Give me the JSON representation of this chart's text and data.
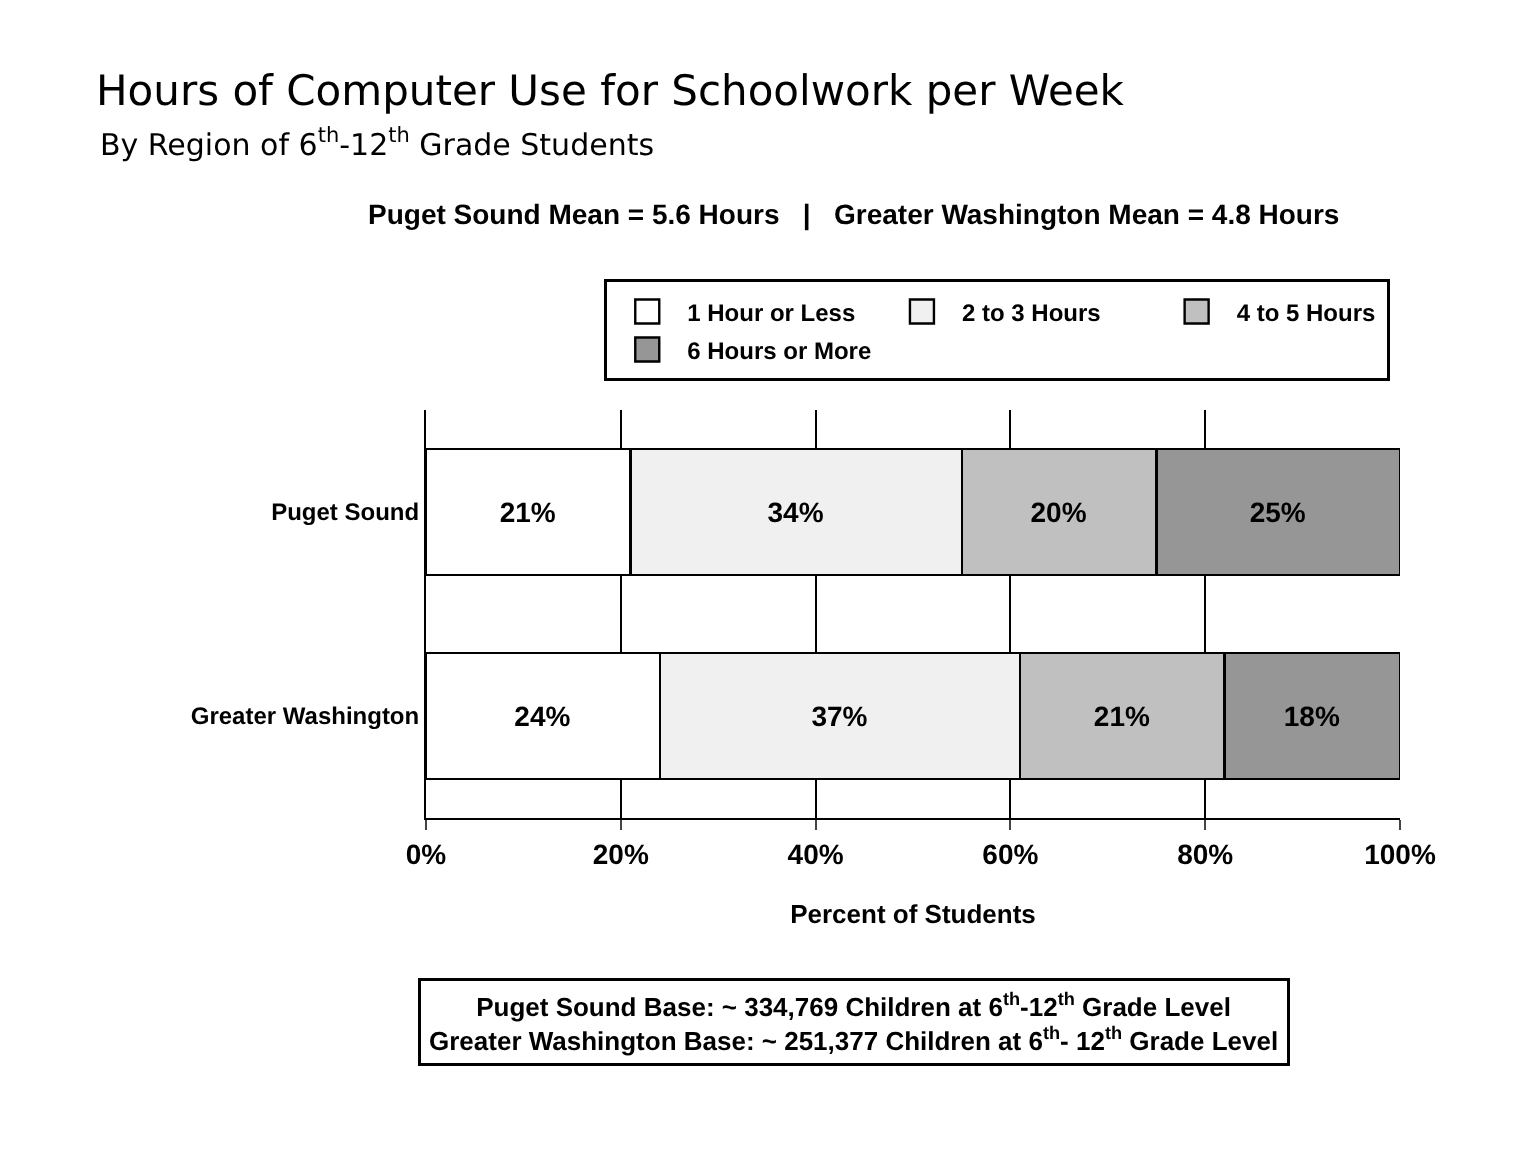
{
  "chart_data": {
    "type": "bar",
    "orientation": "horizontal",
    "stacked": true,
    "title": "Hours of Computer Use for Schoolwork per Week",
    "subtitle": "By Region of 6$^{th}$-12$^{th}$ Grade Students",
    "xlabel": "Percent of Students",
    "categories": [
      "Puget Sound",
      "Greater Washington"
    ],
    "series": [
      {
        "name": "1 Hour or Less",
        "color": "#ffffff",
        "values": [
          21,
          24
        ]
      },
      {
        "name": "2 to 3 Hours",
        "color": "#f0f0f0",
        "values": [
          34,
          37
        ]
      },
      {
        "name": "4 to 5 Hours",
        "color": "#c0c0c0",
        "values": [
          20,
          21
        ]
      },
      {
        "name": "6 Hours or More",
        "color": "#969696",
        "values": [
          25,
          18
        ]
      }
    ],
    "value_labels": [
      [
        "21%",
        "24%"
      ],
      [
        "34%",
        "37%"
      ],
      [
        "20%",
        "21%"
      ],
      [
        "25%",
        "18%"
      ]
    ],
    "xlim": [
      0,
      100
    ],
    "xticks": [
      {
        "value": 0,
        "label": "0%"
      },
      {
        "value": 20,
        "label": "20%"
      },
      {
        "value": 40,
        "label": "40%"
      },
      {
        "value": 60,
        "label": "60%"
      },
      {
        "value": 80,
        "label": "80%"
      },
      {
        "value": 100,
        "label": "100%"
      }
    ],
    "grid": "x",
    "legend": "top",
    "annotations": [
      "Puget Sound Mean = 5.6 Hours   |   Greater Washington Mean = 4.8 Hours",
      "Puget Sound Base: ~ 334,769 Children at 6$^{th}$-12$^{th}$ Grade Level",
      "Greater Washington Base: ~ 251,377 Children at 6$^{th}$- 12$^{th}$ Grade Level"
    ]
  }
}
